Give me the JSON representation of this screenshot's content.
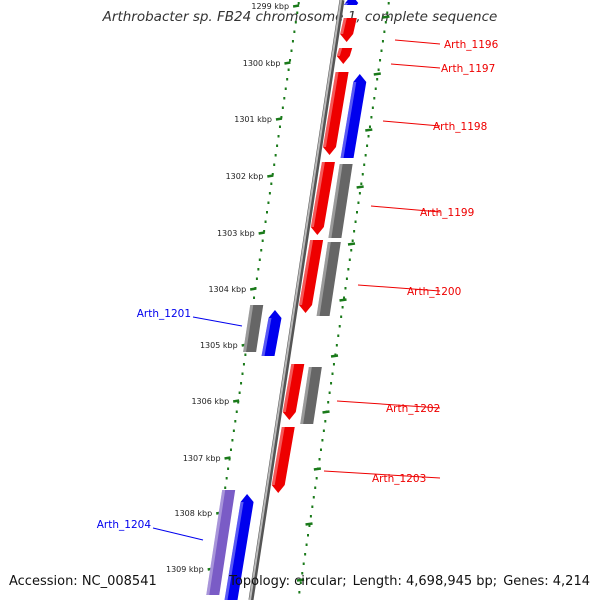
{
  "title": "Arthrobacter sp. FB24 chromosome 1, complete sequence",
  "footer": {
    "accession": "Accession: NC_008541",
    "topology": "Topology: circular;",
    "length": "Length: 4,698,945 bp;",
    "genes": "Genes: 4,214"
  },
  "colors": {
    "forward_strand": "#ee0000",
    "reverse_strand": "#0000ee",
    "other_gene": "#666666",
    "rna_gene": "#7a5cc6",
    "tick": "#1a7a1a",
    "backbone": "#888888"
  },
  "kbp_ticks": [
    "1299 kbp",
    "1300 kbp",
    "1301 kbp",
    "1302 kbp",
    "1303 kbp",
    "1304 kbp",
    "1305 kbp",
    "1306 kbp",
    "1307 kbp",
    "1308 kbp",
    "1309 kbp"
  ],
  "gene_labels": {
    "right": [
      "Arth_1196",
      "Arth_1197",
      "Arth_1198",
      "Arth_1199",
      "Arth_1200",
      "Arth_1202",
      "Arth_1203"
    ],
    "left": [
      "Arth_1201",
      "Arth_1204"
    ]
  }
}
